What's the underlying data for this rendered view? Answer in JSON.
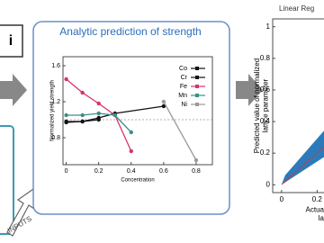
{
  "left_panel": {
    "label": "i"
  },
  "inputs_label": "INPUTS",
  "chart_data": [
    {
      "type": "line",
      "title": "Analytic prediction of strength",
      "xlabel": "Concentration",
      "ylabel": "Normalized yield strength",
      "xlim": [
        -0.02,
        0.9
      ],
      "ylim": [
        0.5,
        1.7
      ],
      "xticks": [
        0,
        0.2,
        0.4,
        0.6,
        0.8
      ],
      "yticks": [
        0.8,
        1.2,
        1.6
      ],
      "reference_line": 1.0,
      "series": [
        {
          "name": "Co",
          "color": "#111111",
          "x": [
            0,
            0.1,
            0.2,
            0.3,
            0.6
          ],
          "values": [
            0.97,
            0.98,
            1.02,
            1.07,
            1.15
          ]
        },
        {
          "name": "Cr",
          "color": "#111111",
          "x": [
            0,
            0.1,
            0.2
          ],
          "values": [
            0.98,
            0.98,
            1.0
          ]
        },
        {
          "name": "Fe",
          "color": "#d6336c",
          "x": [
            0,
            0.1,
            0.2,
            0.3,
            0.4
          ],
          "values": [
            1.45,
            1.3,
            1.18,
            1.05,
            0.65
          ]
        },
        {
          "name": "Mn",
          "color": "#3a8f8a",
          "x": [
            0,
            0.1,
            0.2,
            0.3,
            0.4
          ],
          "values": [
            1.05,
            1.05,
            1.07,
            1.05,
            0.86
          ]
        },
        {
          "name": "Ni",
          "color": "#9a9a9a",
          "x": [
            0.6,
            0.8
          ],
          "values": [
            1.2,
            0.55
          ]
        }
      ]
    },
    {
      "type": "scatter",
      "title": "Linear Reg",
      "xlabel": [
        "Actua",
        "la"
      ],
      "ylabel": [
        "Predicted value of normalized",
        "lattice parameter"
      ],
      "xlim": [
        -0.05,
        0.3
      ],
      "ylim": [
        -0.05,
        1.05
      ],
      "xticks": [
        0.0,
        0.2
      ],
      "yticks": [
        0.0,
        0.2,
        0.4,
        0.6,
        0.8,
        1.0
      ]
    }
  ]
}
